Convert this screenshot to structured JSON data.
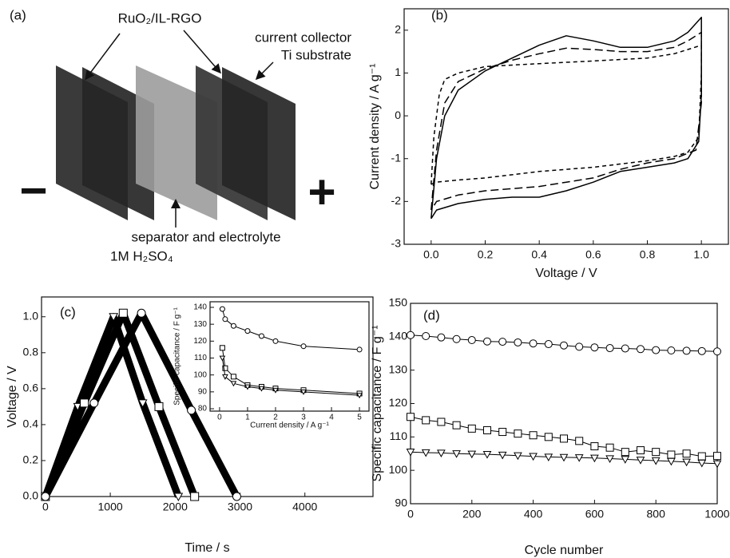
{
  "diagram": {
    "panel_label": "(a)",
    "electrode_label": "RuO₂/IL-RGO",
    "collector_label": "current collector",
    "substrate_label": "Ti substrate",
    "separator_label": "separator and electrolyte",
    "electrolyte_label": "1M H₂SO₄",
    "negative_sign": "−",
    "positive_sign": "+"
  },
  "chart_data": [
    {
      "type": "line",
      "panel_label": "(b)",
      "x_label": "Voltage / V",
      "y_label": "Current density / A g⁻¹",
      "xlim": [
        -0.1,
        1.1
      ],
      "xticks": [
        {
          "value": 0,
          "label": "0.0"
        },
        0.2,
        0.4,
        0.6,
        0.8,
        {
          "value": 1,
          "label": "1.0"
        }
      ],
      "ylim": [
        -3,
        2.5
      ],
      "yticks": [
        -3,
        -2,
        -1,
        0,
        1,
        2
      ],
      "color": "#000000",
      "line_width": 1.5,
      "series": [
        {
          "dash": "solid",
          "x": [
            0,
            0.02,
            0.05,
            0.1,
            0.2,
            0.3,
            0.4,
            0.5,
            0.6,
            0.7,
            0.8,
            0.9,
            0.95,
            1.0,
            1.0,
            0.99,
            0.95,
            0.9,
            0.8,
            0.7,
            0.6,
            0.5,
            0.4,
            0.3,
            0.2,
            0.1,
            0.02,
            0
          ],
          "values": [
            -2.4,
            -1.0,
            0.0,
            0.6,
            1.05,
            1.35,
            1.65,
            1.87,
            1.75,
            1.6,
            1.6,
            1.75,
            1.95,
            2.3,
            0.5,
            -0.6,
            -1.0,
            -1.1,
            -1.2,
            -1.3,
            -1.55,
            -1.75,
            -1.9,
            -1.9,
            -1.95,
            -2.05,
            -2.2,
            -2.4
          ]
        },
        {
          "dash": "long",
          "x": [
            0,
            0.02,
            0.05,
            0.1,
            0.2,
            0.3,
            0.4,
            0.5,
            0.6,
            0.7,
            0.8,
            0.9,
            0.95,
            1.0,
            1.0,
            0.98,
            0.9,
            0.8,
            0.7,
            0.6,
            0.5,
            0.4,
            0.3,
            0.2,
            0.1,
            0.02,
            0
          ],
          "values": [
            -2.2,
            -0.8,
            0.3,
            0.8,
            1.1,
            1.3,
            1.45,
            1.58,
            1.55,
            1.5,
            1.5,
            1.6,
            1.75,
            1.95,
            0.3,
            -0.8,
            -1.0,
            -1.1,
            -1.25,
            -1.45,
            -1.55,
            -1.65,
            -1.7,
            -1.75,
            -1.85,
            -2.0,
            -2.2
          ]
        },
        {
          "dash": "short",
          "x": [
            0,
            0.01,
            0.03,
            0.05,
            0.1,
            0.2,
            0.4,
            0.6,
            0.8,
            0.9,
            0.95,
            1.0,
            1.0,
            0.99,
            0.95,
            0.9,
            0.8,
            0.6,
            0.4,
            0.2,
            0.1,
            0.02,
            0
          ],
          "values": [
            -1.6,
            -0.5,
            0.5,
            0.85,
            1.0,
            1.15,
            1.22,
            1.28,
            1.35,
            1.45,
            1.55,
            1.65,
            1.0,
            -0.5,
            -0.85,
            -0.95,
            -1.05,
            -1.2,
            -1.3,
            -1.45,
            -1.5,
            -1.55,
            -1.6
          ]
        }
      ]
    },
    {
      "type": "line",
      "panel_label": "(c)",
      "x_label": "Time / s",
      "y_label": "Voltage / V",
      "xlim": [
        -60,
        5050
      ],
      "xticks": [
        0,
        1000,
        2000,
        3000,
        4000
      ],
      "ylim": [
        0,
        1.11
      ],
      "yticks": [
        {
          "value": 0,
          "label": "0.0"
        },
        0.2,
        0.4,
        0.6,
        0.8,
        {
          "value": 1,
          "label": "1.0"
        }
      ],
      "color": "#000000",
      "line_width": 9,
      "series": [
        {
          "marker": "v",
          "x": [
            0,
            500,
            1050,
            1500,
            2050
          ],
          "values": [
            0,
            0.5,
            1.0,
            0.52,
            0
          ]
        },
        {
          "marker": "s",
          "x": [
            0,
            600,
            1200,
            1750,
            2300
          ],
          "values": [
            0,
            0.52,
            1.02,
            0.5,
            0
          ]
        },
        {
          "marker": "o",
          "x": [
            0,
            750,
            1480,
            2250,
            2950
          ],
          "values": [
            0,
            0.52,
            1.02,
            0.48,
            0
          ]
        }
      ]
    },
    {
      "type": "line",
      "x_label": "Current density / A g⁻¹",
      "y_label": "Specific capacitance / F g⁻¹",
      "xlim": [
        -0.34,
        5.34
      ],
      "xticks": [
        0,
        1,
        2,
        3,
        4,
        5
      ],
      "ylim": [
        78.6,
        143.3
      ],
      "yticks": [
        80,
        90,
        100,
        110,
        120,
        130,
        140
      ],
      "color": "#000000",
      "line_width": 1,
      "series": [
        {
          "marker": "o",
          "x": [
            0.1,
            0.2,
            0.5,
            1,
            1.5,
            2,
            3,
            5
          ],
          "values": [
            139,
            133,
            129,
            126,
            123,
            120,
            117,
            115
          ]
        },
        {
          "marker": "s",
          "x": [
            0.1,
            0.2,
            0.5,
            1,
            1.5,
            2,
            3,
            5
          ],
          "values": [
            116,
            104,
            99,
            94,
            93,
            92,
            91,
            89
          ]
        },
        {
          "marker": "v",
          "x": [
            0.1,
            0.2,
            0.5,
            1,
            1.5,
            2,
            3,
            5
          ],
          "values": [
            110,
            99,
            95,
            93,
            92,
            91,
            90,
            88
          ]
        }
      ]
    },
    {
      "type": "line",
      "panel_label": "(d)",
      "x_label": "Cycle number",
      "y_label": "Specific capacitance / F g⁻¹",
      "xlim": [
        0,
        1000
      ],
      "xticks": [
        0,
        200,
        400,
        600,
        800,
        1000
      ],
      "ylim": [
        90,
        150
      ],
      "yticks": [
        90,
        100,
        110,
        120,
        130,
        140,
        150
      ],
      "color": "#000000",
      "line_width": 1,
      "series": [
        {
          "marker": "o",
          "x": [
            0,
            50,
            100,
            150,
            200,
            250,
            300,
            350,
            400,
            450,
            500,
            550,
            600,
            650,
            700,
            750,
            800,
            850,
            900,
            950,
            1000
          ],
          "values": [
            140.5,
            140.2,
            139.8,
            139.3,
            139,
            138.6,
            138.5,
            138.3,
            138,
            137.8,
            137.4,
            137,
            136.8,
            136.6,
            136.5,
            136.3,
            136,
            135.9,
            135.8,
            135.7,
            135.6
          ]
        },
        {
          "marker": "s",
          "x": [
            0,
            50,
            100,
            150,
            200,
            250,
            300,
            350,
            400,
            450,
            500,
            550,
            600,
            650,
            700,
            750,
            800,
            850,
            900,
            950,
            1000
          ],
          "values": [
            116,
            115,
            114.5,
            113.5,
            112.5,
            112,
            111.5,
            111,
            110.5,
            110,
            109.5,
            108.8,
            107.2,
            106.8,
            105.5,
            106,
            105.5,
            104.7,
            105,
            104.2,
            104.3
          ]
        },
        {
          "marker": "v",
          "x": [
            0,
            50,
            100,
            150,
            200,
            250,
            300,
            350,
            400,
            450,
            500,
            550,
            600,
            650,
            700,
            750,
            800,
            850,
            900,
            950,
            1000
          ],
          "values": [
            105.5,
            105.3,
            105.2,
            105,
            104.9,
            104.8,
            104.6,
            104.4,
            104.2,
            104,
            103.9,
            103.8,
            103.7,
            103.5,
            103.3,
            103.1,
            102.9,
            102.7,
            102.5,
            102.2,
            102
          ]
        }
      ]
    }
  ]
}
